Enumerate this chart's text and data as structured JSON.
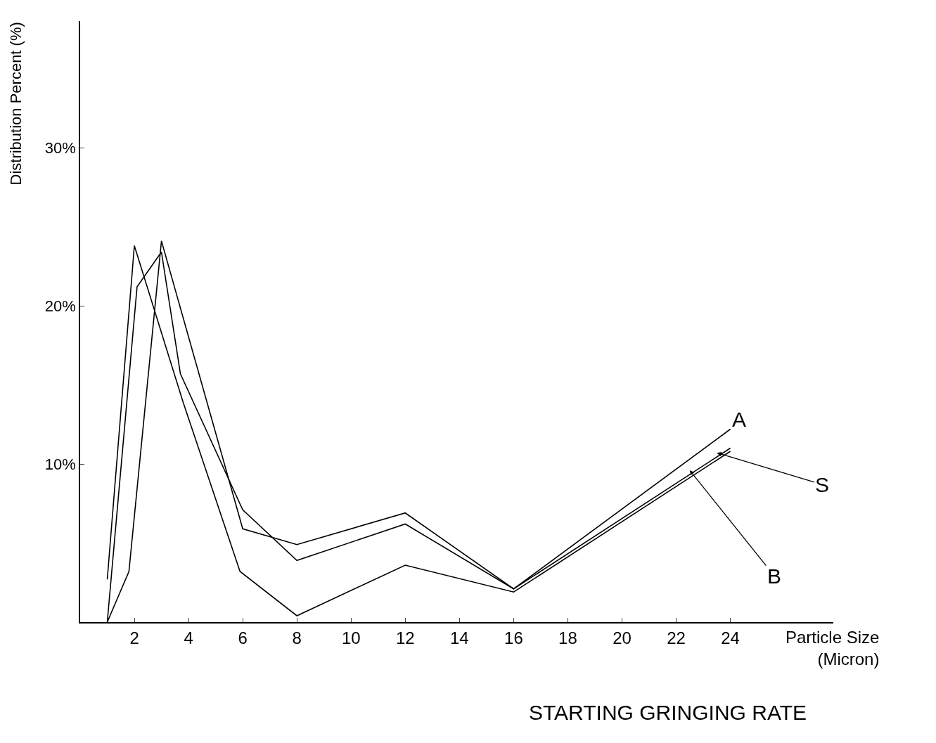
{
  "chart_data": {
    "type": "line",
    "title": "STARTING GRINGING RATE",
    "xlabel": "Particle Size (Micron)",
    "ylabel": "Distribution Percent (%)",
    "xlim": [
      0,
      27.8
    ],
    "xticks": [
      2,
      4,
      6,
      8,
      10,
      12,
      14,
      16,
      18,
      20,
      22,
      24
    ],
    "ylim": [
      0,
      38
    ],
    "yticks": [
      {
        "value": 10,
        "label": "10%"
      },
      {
        "value": 20,
        "label": "20%"
      },
      {
        "value": 30,
        "label": "30%"
      }
    ],
    "series": [
      {
        "color": "#000000",
        "x": [
          1,
          1.8,
          3,
          6,
          8,
          12,
          16,
          24
        ],
        "values": [
          0,
          3.2,
          24.1,
          5.9,
          4.9,
          6.9,
          2.1,
          12.2
        ]
      },
      {
        "color": "#000000",
        "x": [
          1,
          2.1,
          3,
          3.7,
          6,
          8,
          12,
          16,
          24
        ],
        "values": [
          0,
          21.2,
          23.4,
          15.7,
          7.1,
          3.9,
          6.2,
          2.1,
          11.0
        ]
      },
      {
        "color": "#000000",
        "x": [
          1,
          2,
          3.8,
          5.9,
          8,
          12,
          16,
          24
        ],
        "values": [
          2.7,
          23.8,
          13.9,
          3.2,
          0.4,
          3.6,
          1.9,
          10.8
        ]
      }
    ],
    "annotations": [
      {
        "text": "A",
        "x": 24,
        "y": 12.2
      },
      {
        "text": "S",
        "x": 23.5,
        "y": 10.7
      },
      {
        "text": "B",
        "x": 22.5,
        "y": 9.6
      }
    ],
    "marker": "none",
    "line_style": "solid"
  }
}
